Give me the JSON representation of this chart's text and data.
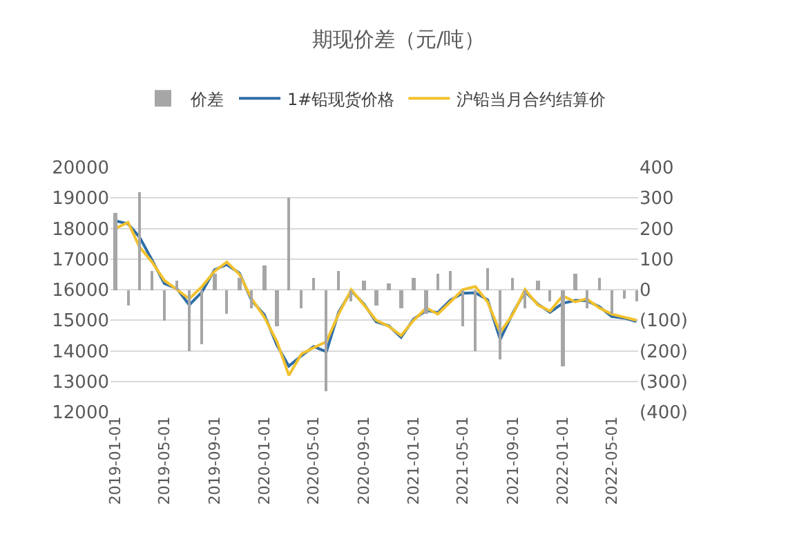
{
  "chart_data": {
    "type": "line",
    "title": "期现价差（元/吨）",
    "x": [
      "2019-01",
      "2019-02",
      "2019-03",
      "2019-04",
      "2019-05",
      "2019-06",
      "2019-07",
      "2019-08",
      "2019-09",
      "2019-10",
      "2019-11",
      "2019-12",
      "2020-01",
      "2020-02",
      "2020-03",
      "2020-04",
      "2020-05",
      "2020-06",
      "2020-07",
      "2020-08",
      "2020-09",
      "2020-10",
      "2020-11",
      "2020-12",
      "2021-01",
      "2021-02",
      "2021-03",
      "2021-04",
      "2021-05",
      "2021-06",
      "2021-07",
      "2021-08",
      "2021-09",
      "2021-10",
      "2021-11",
      "2021-12",
      "2022-01",
      "2022-02",
      "2022-03",
      "2022-04",
      "2022-05",
      "2022-06",
      "2022-07"
    ],
    "series": [
      {
        "name": "价差",
        "type": "bar",
        "axis": "y2",
        "color": "#a6a6a6",
        "values": [
          250,
          -50,
          320,
          60,
          -100,
          30,
          -200,
          -180,
          50,
          -80,
          40,
          -60,
          80,
          -120,
          300,
          -60,
          40,
          -330,
          60,
          -40,
          30,
          -50,
          20,
          -60,
          40,
          -80,
          50,
          60,
          -120,
          -200,
          70,
          -230,
          40,
          -60,
          30,
          -40,
          -250,
          50,
          -60,
          40,
          -80,
          -30,
          -40
        ]
      },
      {
        "name": "1#铅现货价格",
        "color": "#2e6ea8",
        "values": [
          18250,
          18150,
          17720,
          16960,
          16200,
          16030,
          15500,
          15920,
          16650,
          16820,
          16540,
          15640,
          15180,
          14180,
          13500,
          13840,
          14140,
          13970,
          15260,
          15960,
          15530,
          14950,
          14820,
          14440,
          15040,
          15320,
          15250,
          15660,
          15880,
          15900,
          15670,
          14370,
          15240,
          15940,
          15530,
          15260,
          15550,
          15650,
          15640,
          15440,
          15120,
          15070,
          14960
        ]
      },
      {
        "name": "沪铅当月合约结算价",
        "color": "#f2c12e",
        "values": [
          18000,
          18200,
          17400,
          16900,
          16300,
          16000,
          15700,
          16100,
          16600,
          16900,
          16500,
          15700,
          15100,
          14300,
          13200,
          13900,
          14100,
          14300,
          15200,
          16000,
          15500,
          15000,
          14800,
          14500,
          15000,
          15400,
          15200,
          15600,
          16000,
          16100,
          15600,
          14600,
          15200,
          16000,
          15500,
          15300,
          15800,
          15600,
          15700,
          15400,
          15200,
          15100,
          15000
        ]
      }
    ],
    "xlim": [
      "2018-12-20",
      "2022-07-05"
    ],
    "xticks": [
      "2019-01-01",
      "2019-05-01",
      "2019-09-01",
      "2020-01-01",
      "2020-05-01",
      "2020-09-01",
      "2021-01-01",
      "2021-05-01",
      "2021-09-01",
      "2022-01-01",
      "2022-05-01"
    ],
    "ylim": [
      12000,
      20000
    ],
    "yticks": [
      12000,
      13000,
      14000,
      15000,
      16000,
      17000,
      18000,
      19000,
      20000
    ],
    "y2lim": [
      -400,
      400
    ],
    "y2ticks": [
      {
        "value": -400,
        "label": "(400)"
      },
      {
        "value": -300,
        "label": "(300)"
      },
      {
        "value": -200,
        "label": "(200)"
      },
      {
        "value": -100,
        "label": "(100)"
      },
      0,
      100,
      200,
      300,
      400
    ],
    "grid": "y",
    "legend": "top",
    "marker": "none",
    "line_style": "solid"
  }
}
